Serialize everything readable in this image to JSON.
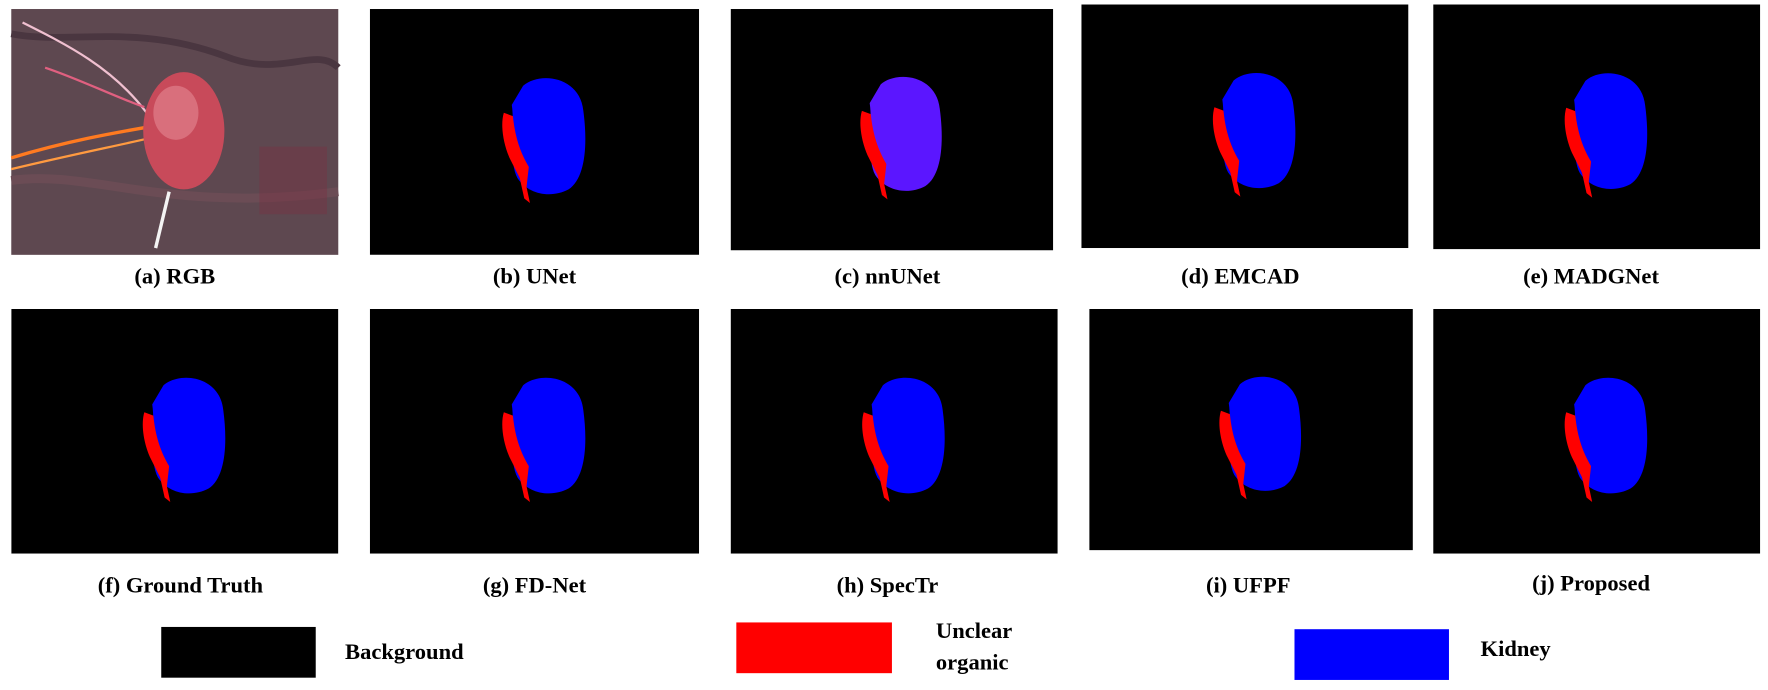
{
  "panels": [
    {
      "caption": "(a) RGB"
    },
    {
      "caption": "(b) UNet"
    },
    {
      "caption": "(c) nnUNet"
    },
    {
      "caption": "(d) EMCAD"
    },
    {
      "caption": "(e) MADGNet"
    },
    {
      "caption": "(f) Ground Truth"
    },
    {
      "caption": "(g) FD-Net"
    },
    {
      "caption": "(h) SpecTr"
    },
    {
      "caption": "(i) UFPF"
    },
    {
      "caption": "(j) Proposed"
    }
  ],
  "legend": [
    {
      "label": "Background"
    },
    {
      "label": [
        "Unclear",
        "organic"
      ]
    },
    {
      "label": "Kidney"
    }
  ]
}
